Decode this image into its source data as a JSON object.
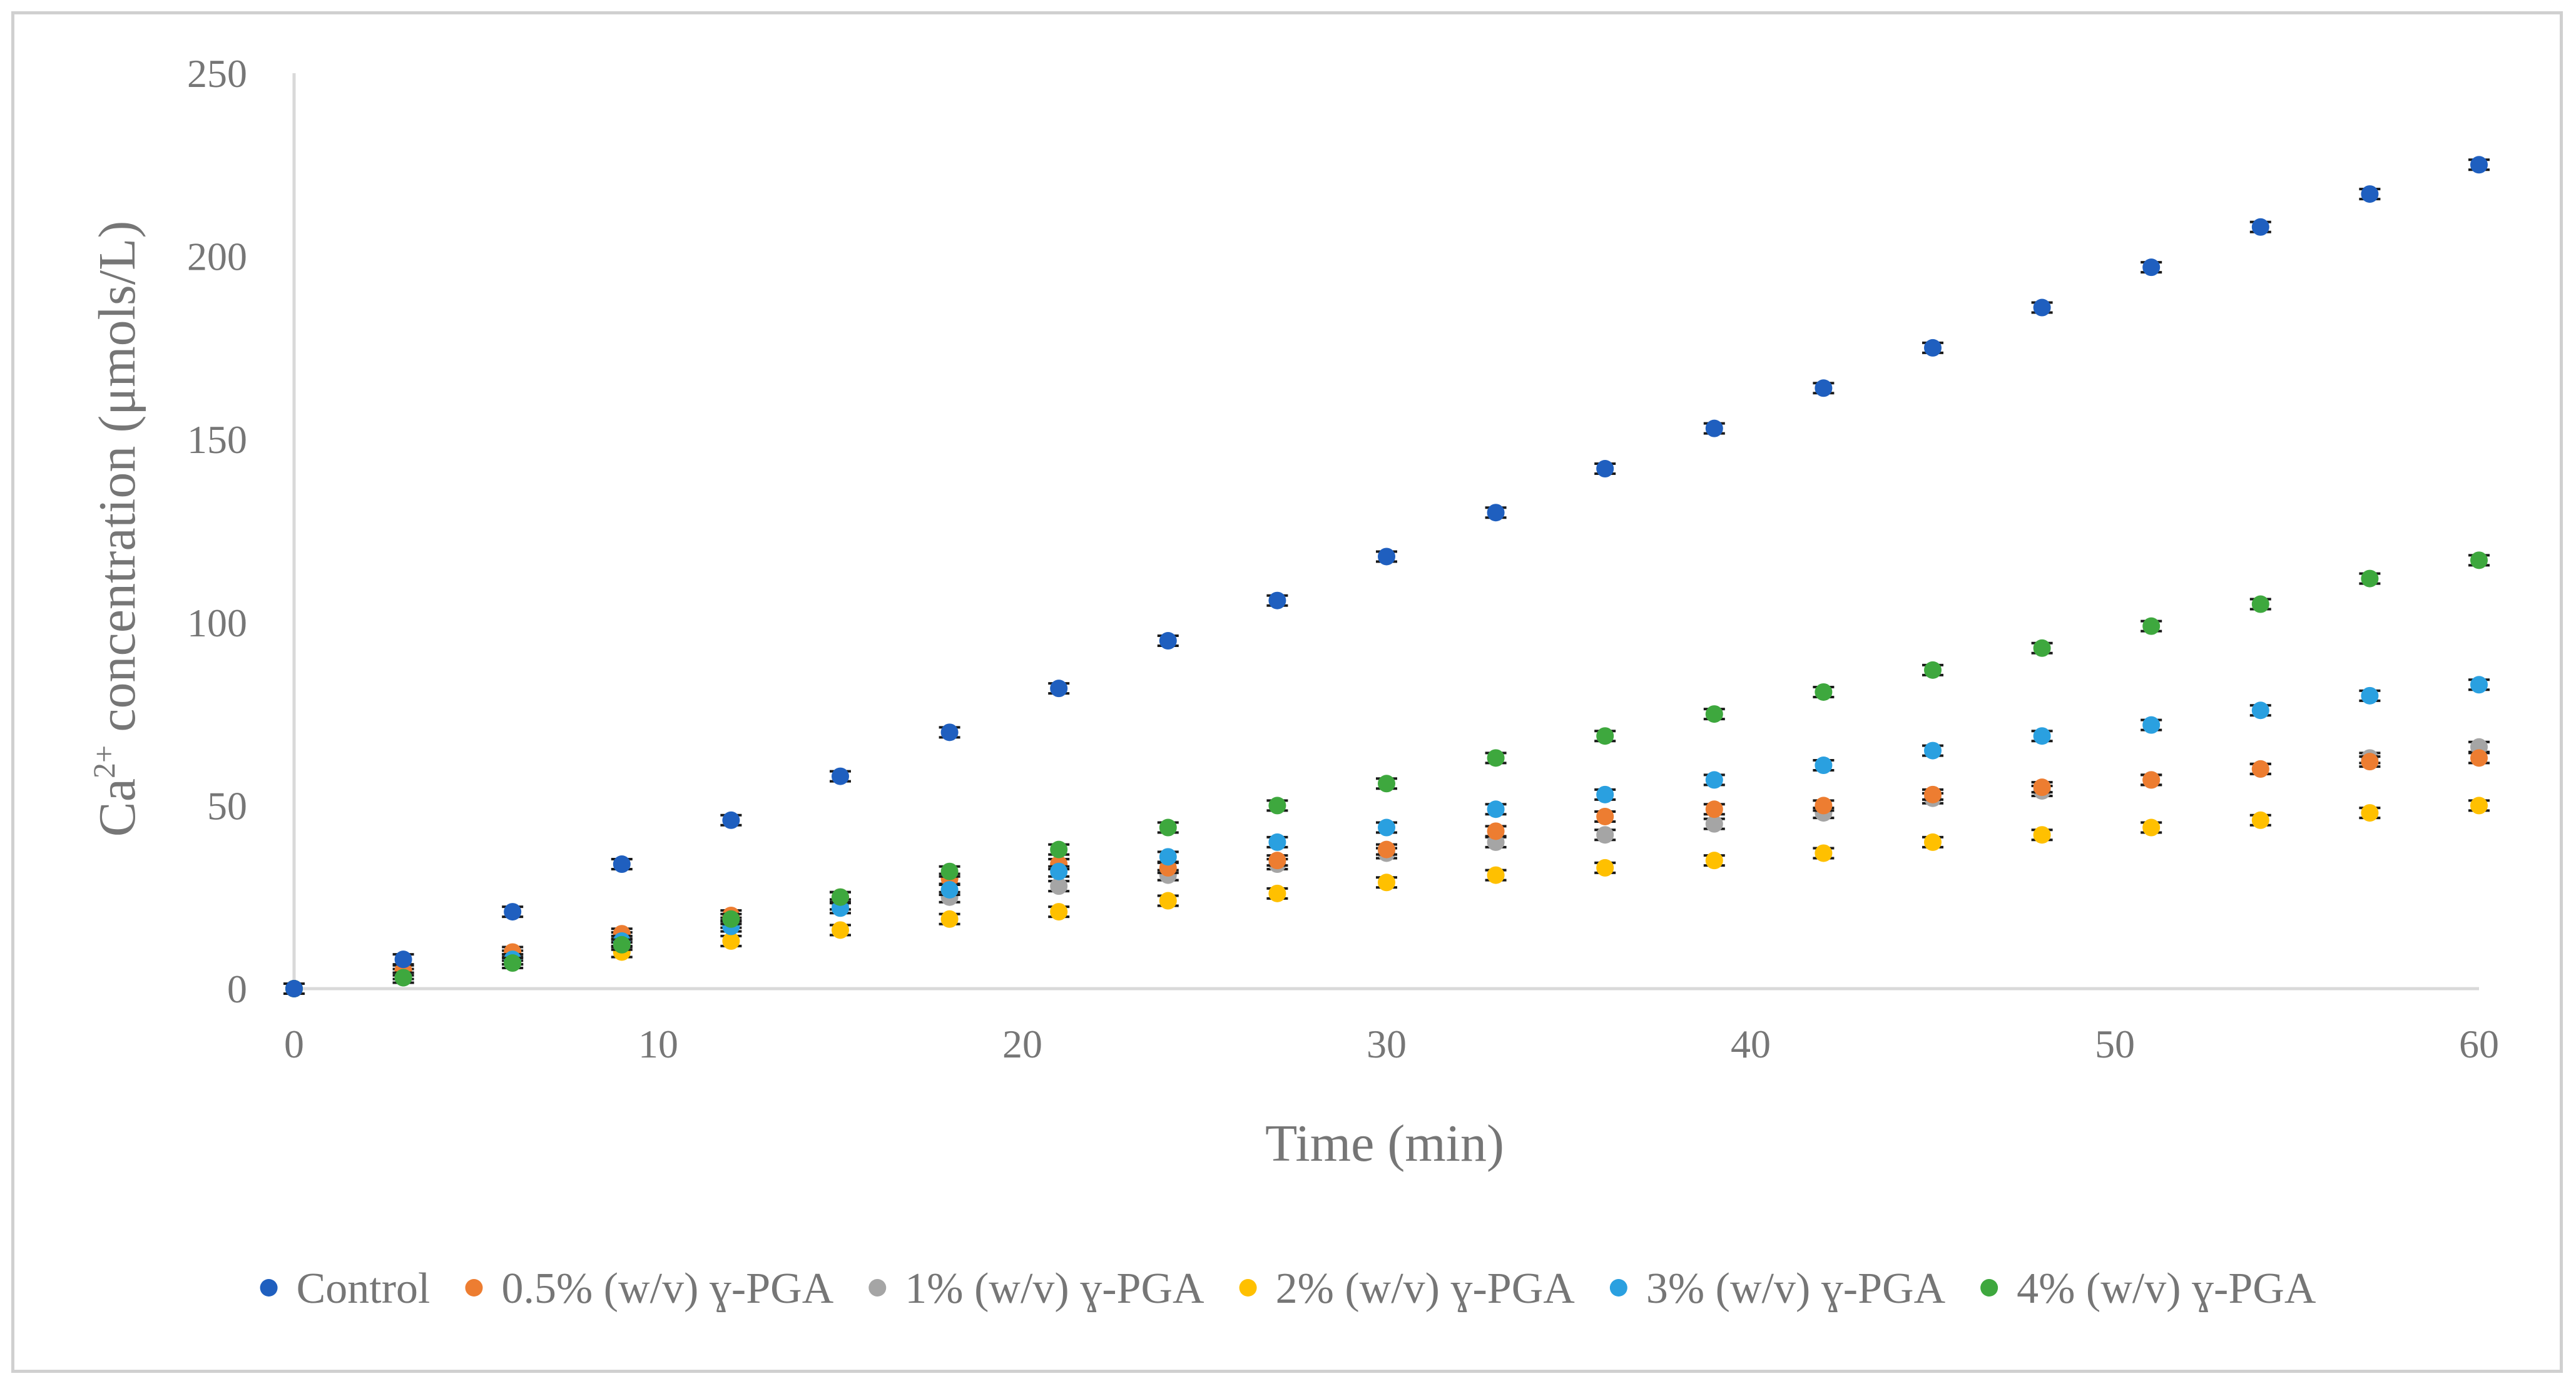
{
  "chart_data": {
    "type": "scatter",
    "title": "",
    "xlabel": "Time (min)",
    "ylabel_base": "Ca",
    "ylabel_sup": "2+",
    "ylabel_rest": " concentration (μmols/L)",
    "xlim": [
      0,
      60
    ],
    "ylim": [
      0,
      250
    ],
    "x_ticks": [
      0,
      10,
      20,
      30,
      40,
      50,
      60
    ],
    "y_ticks": [
      0,
      50,
      100,
      150,
      200,
      250
    ],
    "grid": false,
    "legend_position": "bottom",
    "x": [
      0,
      3,
      6,
      9,
      12,
      15,
      18,
      21,
      24,
      27,
      30,
      33,
      36,
      39,
      42,
      45,
      48,
      51,
      54,
      57,
      60
    ],
    "series": [
      {
        "name": "Control",
        "color": "#1f5fbf",
        "values": [
          0,
          8,
          21,
          34,
          46,
          58,
          70,
          82,
          95,
          106,
          118,
          130,
          142,
          153,
          164,
          175,
          186,
          197,
          208,
          217,
          225
        ]
      },
      {
        "name": "0.5% (w/v) ɣ-PGA",
        "color": "#ed7d31",
        "values": [
          0,
          5,
          10,
          15,
          20,
          25,
          30,
          34,
          33,
          35,
          38,
          43,
          47,
          49,
          50,
          53,
          55,
          57,
          60,
          62,
          63
        ]
      },
      {
        "name": "1% (w/v) ɣ-PGA",
        "color": "#a5a5a5",
        "values": [
          0,
          4,
          9,
          14,
          18,
          23,
          25,
          28,
          31,
          34,
          37,
          40,
          42,
          45,
          48,
          52,
          54,
          57,
          60,
          63,
          66
        ]
      },
      {
        "name": "2% (w/v) ɣ-PGA",
        "color": "#ffc000",
        "values": [
          0,
          3,
          8,
          10,
          13,
          16,
          19,
          21,
          24,
          26,
          29,
          31,
          33,
          35,
          37,
          40,
          42,
          44,
          46,
          48,
          50
        ]
      },
      {
        "name": "3% (w/v) ɣ-PGA",
        "color": "#2aa0e0",
        "values": [
          0,
          3,
          8,
          13,
          17,
          22,
          27,
          32,
          36,
          40,
          44,
          49,
          53,
          57,
          61,
          65,
          69,
          72,
          76,
          80,
          83
        ]
      },
      {
        "name": "4% (w/v) ɣ-PGA",
        "color": "#3ea83e",
        "values": [
          0,
          3,
          7,
          12,
          19,
          25,
          32,
          38,
          44,
          50,
          56,
          63,
          69,
          75,
          81,
          87,
          93,
          99,
          105,
          112,
          117
        ]
      }
    ]
  }
}
